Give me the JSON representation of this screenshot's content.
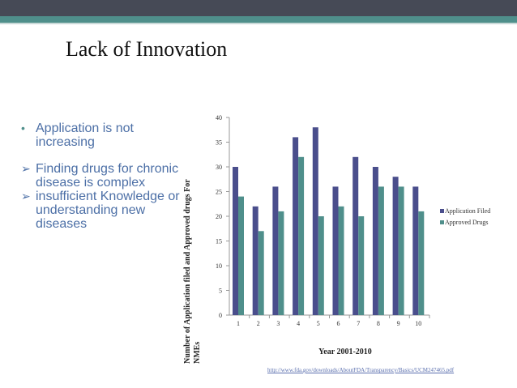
{
  "slide": {
    "title": "Lack of Innovation",
    "bullets": [
      {
        "marker": "•",
        "text": "Application is not increasing"
      },
      {
        "marker": "➢",
        "text": "Finding drugs for chronic disease is complex"
      },
      {
        "marker": "➢",
        "text": "insufficient Knowledge or understanding new diseases"
      }
    ],
    "source_link": "http://www.fda.gov/downloads/AboutFDA/Transparency/Basics/UCM247465.pdf"
  },
  "colors": {
    "top_bar": "#464a56",
    "accent": "#4f8f8b",
    "series1": "#4a4e8c",
    "series2": "#4f8f8b"
  },
  "chart_data": {
    "type": "bar",
    "title": "",
    "xlabel": "Year 2001-2010",
    "ylabel": "Number of Application filed and Approved drugs For NMEs",
    "categories": [
      "1",
      "2",
      "3",
      "4",
      "5",
      "6",
      "7",
      "8",
      "9",
      "10"
    ],
    "series": [
      {
        "name": "Application Filed",
        "values": [
          30,
          22,
          26,
          36,
          38,
          26,
          32,
          30,
          28,
          26
        ]
      },
      {
        "name": "Approved Drugs",
        "values": [
          24,
          17,
          21,
          32,
          20,
          22,
          20,
          26,
          26,
          21
        ]
      }
    ],
    "ylim": [
      0,
      40
    ],
    "yticks": [
      0,
      5,
      10,
      15,
      20,
      25,
      30,
      35,
      40
    ],
    "legend": "right"
  }
}
